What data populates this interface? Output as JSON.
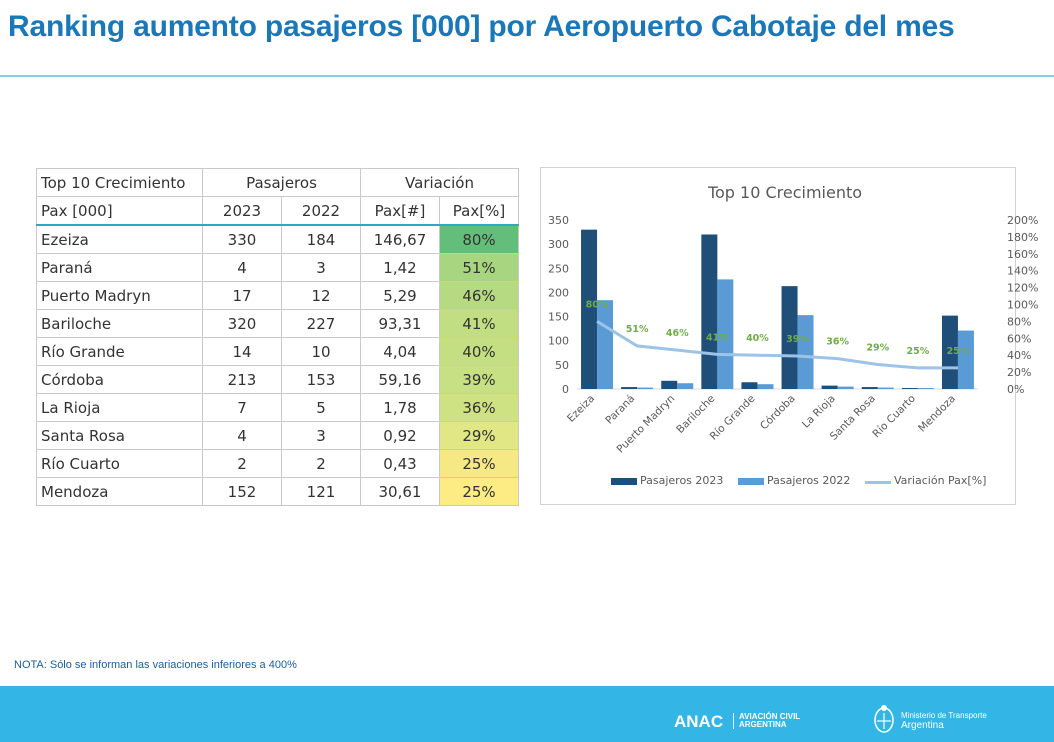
{
  "title": "Ranking aumento pasajeros [000] por Aeropuerto Cabotaje del mes",
  "table": {
    "h1": "Top 10 Crecimiento",
    "h_pasajeros": "Pasajeros",
    "h_variacion": "Variación",
    "h_pax": "Pax [000]",
    "h_2023": "2023",
    "h_2022": "2022",
    "h_paxnum": "Pax[#]",
    "h_paxpct": "Pax[%]",
    "rows": [
      {
        "name": "Ezeiza",
        "y2023": "330",
        "y2022": "184",
        "pax": "146,67",
        "pct": "80%",
        "color": "#63be7b"
      },
      {
        "name": "Paraná",
        "y2023": "4",
        "y2022": "3",
        "pax": "1,42",
        "pct": "51%",
        "color": "#a8d580"
      },
      {
        "name": "Puerto Madryn",
        "y2023": "17",
        "y2022": "12",
        "pax": "5,29",
        "pct": "46%",
        "color": "#b5da81"
      },
      {
        "name": "Bariloche",
        "y2023": "320",
        "y2022": "227",
        "pax": "93,31",
        "pct": "41%",
        "color": "#c1de82"
      },
      {
        "name": "Río Grande",
        "y2023": "14",
        "y2022": "10",
        "pax": "4,04",
        "pct": "40%",
        "color": "#c4df82"
      },
      {
        "name": "Córdoba",
        "y2023": "213",
        "y2022": "153",
        "pax": "59,16",
        "pct": "39%",
        "color": "#c6e083"
      },
      {
        "name": "La Rioja",
        "y2023": "7",
        "y2022": "5",
        "pax": "1,78",
        "pct": "36%",
        "color": "#cee283"
      },
      {
        "name": "Santa Rosa",
        "y2023": "4",
        "y2022": "3",
        "pax": "0,92",
        "pct": "29%",
        "color": "#e0e784"
      },
      {
        "name": "Río Cuarto",
        "y2023": "2",
        "y2022": "2",
        "pax": "0,43",
        "pct": "25%",
        "color": "#f6e985"
      },
      {
        "name": "Mendoza",
        "y2023": "152",
        "y2022": "121",
        "pax": "30,61",
        "pct": "25%",
        "color": "#fdeb84"
      }
    ]
  },
  "chart_data": {
    "type": "bar",
    "title": "Top 10 Crecimiento",
    "categories": [
      "Ezeiza",
      "Paraná",
      "Puerto Madryn",
      "Bariloche",
      "Río Grande",
      "Córdoba",
      "La Rioja",
      "Santa Rosa",
      "Río Cuarto",
      "Mendoza"
    ],
    "series": [
      {
        "name": "Pasajeros 2023",
        "type": "bar",
        "axis": "left",
        "color": "#1f4e79",
        "values": [
          330,
          4,
          17,
          320,
          14,
          213,
          7,
          4,
          2,
          152
        ]
      },
      {
        "name": "Pasajeros 2022",
        "type": "bar",
        "axis": "left",
        "color": "#5b9bd5",
        "values": [
          184,
          3,
          12,
          227,
          10,
          153,
          5,
          3,
          2,
          121
        ]
      },
      {
        "name": "Variación Pax[%]",
        "type": "line",
        "axis": "right",
        "color": "#9dc3e6",
        "values": [
          80,
          51,
          46,
          41,
          40,
          39,
          36,
          29,
          25,
          25
        ]
      }
    ],
    "data_labels": [
      "80%",
      "51%",
      "46%",
      "41%",
      "40%",
      "39%",
      "36%",
      "29%",
      "25%",
      "25%"
    ],
    "ylim": [
      0,
      350
    ],
    "yticks": [
      0,
      50,
      100,
      150,
      200,
      250,
      300,
      350
    ],
    "y2lim": [
      0,
      200
    ],
    "y2ticks": [
      "0%",
      "20%",
      "40%",
      "60%",
      "80%",
      "100%",
      "120%",
      "140%",
      "160%",
      "180%",
      "200%"
    ],
    "grid": false,
    "legend_position": "bottom"
  },
  "nota": "NOTA: Sólo se informan las variaciones inferiores a 400%",
  "footer": {
    "anac": "ANAC",
    "aviacion_1": "AVIACIÓN CIVIL",
    "aviacion_2": "ARGENTINA",
    "ministerio_1": "Ministerio de Transporte",
    "ministerio_2": "Argentina"
  },
  "colors": {
    "title": "#1a77b8",
    "footer": "#33b5e5",
    "rule": "#7fd3e2"
  }
}
